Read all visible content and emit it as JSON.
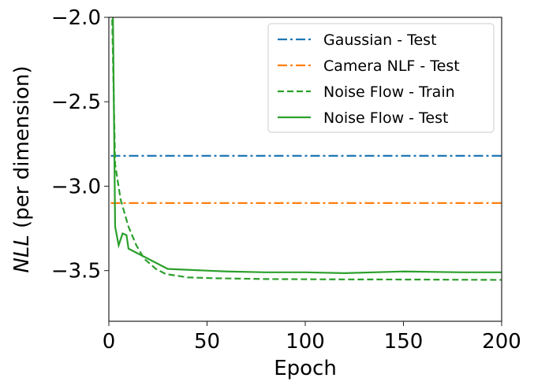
{
  "chart_data": {
    "type": "line",
    "title": "",
    "xlabel": "Epoch",
    "ylabel": "NLL (per dimension)",
    "ylabel_italic_part": "NLL",
    "ylabel_rest": " (per dimension)",
    "xlim": [
      0,
      200
    ],
    "ylim": [
      -3.8,
      -2.0
    ],
    "xticks": [
      0,
      50,
      100,
      150,
      200
    ],
    "xtick_labels": [
      "0",
      "50",
      "100",
      "150",
      "200"
    ],
    "yticks": [
      -3.5,
      -3.0,
      -2.5,
      -2.0
    ],
    "ytick_labels": [
      "−3.5",
      "−3.0",
      "−2.5",
      "−2.0"
    ],
    "grid": false,
    "legend_position": "top-right",
    "series": [
      {
        "name": "Gaussian - Test",
        "color": "#1f77b4",
        "style": "dashdot",
        "x": [
          1,
          200
        ],
        "y": [
          -2.82,
          -2.82
        ]
      },
      {
        "name": "Camera NLF - Test",
        "color": "#ff7f0e",
        "style": "dashdot",
        "x": [
          1,
          200
        ],
        "y": [
          -3.1,
          -3.1
        ]
      },
      {
        "name": "Noise Flow - Train",
        "color": "#2ca02c",
        "style": "dashed",
        "x": [
          1.5,
          3.2,
          6,
          10,
          14,
          18,
          24,
          29,
          40,
          53,
          80,
          120,
          160,
          200
        ],
        "y": [
          -1.9,
          -2.87,
          -3.08,
          -3.24,
          -3.35,
          -3.43,
          -3.49,
          -3.52,
          -3.54,
          -3.545,
          -3.55,
          -3.552,
          -3.553,
          -3.555
        ]
      },
      {
        "name": "Noise Flow - Test",
        "color": "#2ca02c",
        "style": "solid",
        "x": [
          2,
          3.2,
          5,
          7,
          9,
          10,
          20,
          30,
          50,
          60,
          80,
          100,
          120,
          150,
          180,
          200
        ],
        "y": [
          -1.9,
          -3.24,
          -3.35,
          -3.28,
          -3.29,
          -3.37,
          -3.43,
          -3.49,
          -3.5,
          -3.505,
          -3.51,
          -3.51,
          -3.515,
          -3.505,
          -3.51,
          -3.51
        ]
      }
    ]
  }
}
